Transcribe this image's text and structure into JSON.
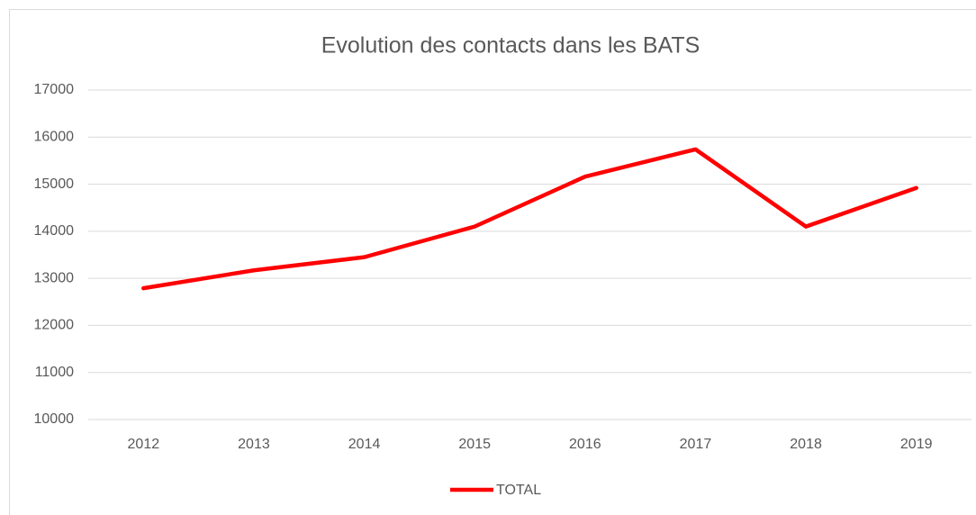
{
  "chart_data": {
    "type": "line",
    "title": "Evolution des contacts dans les BATS",
    "categories": [
      "2012",
      "2013",
      "2014",
      "2015",
      "2016",
      "2017",
      "2018",
      "2019"
    ],
    "series": [
      {
        "name": "TOTAL",
        "color": "#ff0000",
        "values": [
          12790,
          13170,
          13450,
          14100,
          15160,
          15740,
          14100,
          14920
        ]
      }
    ],
    "ylim": [
      10000,
      17000
    ],
    "yticks": [
      10000,
      11000,
      12000,
      13000,
      14000,
      15000,
      16000,
      17000
    ],
    "grid": true,
    "legend": "bottom"
  }
}
